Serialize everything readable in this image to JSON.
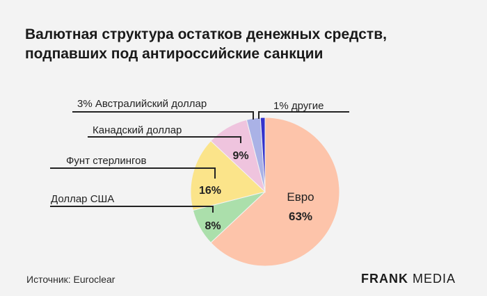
{
  "header": {
    "title_line1": "Валютная структура остатков денежных средств,",
    "title_line2": "подпавших под антироссийские санкции"
  },
  "chart_data": {
    "type": "pie",
    "title": "Валютная структура остатков денежных средств, подпавших под антироссийские санкции",
    "slices": [
      {
        "label": "Евро",
        "value": 63,
        "value_label": "63%",
        "color": "#fdc4aa"
      },
      {
        "label": "Доллар США",
        "value": 8,
        "value_label": "8%",
        "color": "#abdfab"
      },
      {
        "label": "Фунт стерлингов",
        "value": 16,
        "value_label": "16%",
        "color": "#fbe48a"
      },
      {
        "label": "Канадский доллар",
        "value": 9,
        "value_label": "9%",
        "color": "#efc4de"
      },
      {
        "label": "Австралийский доллар",
        "value": 3,
        "value_label": "3%",
        "color": "#aab2e6"
      },
      {
        "label": "другие",
        "value": 1,
        "value_label": "1%",
        "color": "#3433cc"
      }
    ],
    "outside_labels": {
      "australian": "3%  Австралийский доллар",
      "others": "1% другие"
    }
  },
  "footer": {
    "source": "Источник: Euroclear",
    "brand_bold": "FRANK",
    "brand_light": "MEDIA"
  }
}
